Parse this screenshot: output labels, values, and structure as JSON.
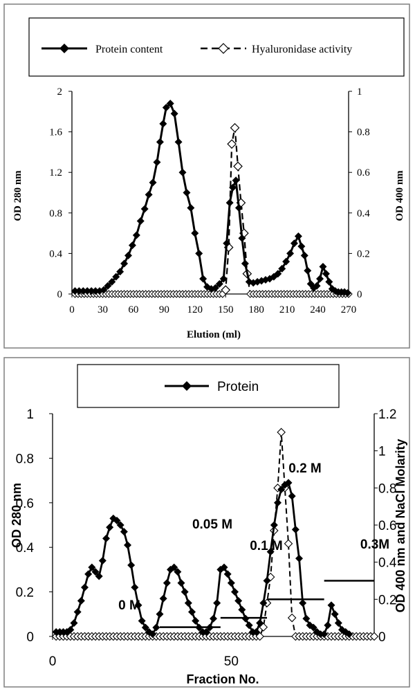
{
  "chart_data": [
    {
      "type": "line",
      "title": "",
      "legend": {
        "position": "top",
        "entries": [
          "Protein content",
          "Hyaluronidase activity"
        ]
      },
      "xlabel": "Elution (ml)",
      "ylabel": "OD 280 nm",
      "y2label": "OD 400 nm",
      "xlim": [
        0,
        270
      ],
      "ylim": [
        0,
        2
      ],
      "y2lim": [
        0,
        1
      ],
      "xticks": [
        "0",
        "30",
        "60",
        "90",
        "120",
        "150",
        "180",
        "210",
        "240",
        "270"
      ],
      "yticks": [
        "0",
        "0.4",
        "0.8",
        "1.2",
        "1.6",
        "2"
      ],
      "y2ticks": [
        "0",
        "0.2",
        "0.4",
        "0.6",
        "0.8",
        "1"
      ],
      "grid": false,
      "series": [
        {
          "name": "Protein content",
          "axis": "left",
          "marker": "filled-diamond",
          "line": "solid",
          "x": [
            3,
            7,
            11,
            15,
            19,
            23,
            27,
            31,
            35,
            39,
            43,
            47,
            51,
            55,
            59,
            63,
            67,
            71,
            75,
            79,
            83,
            86,
            89,
            92,
            96,
            100,
            104,
            108,
            112,
            116,
            120,
            124,
            128,
            132,
            136,
            140,
            144,
            148,
            151,
            154,
            157,
            160,
            163,
            166,
            169,
            173,
            177,
            181,
            185,
            189,
            193,
            197,
            201,
            205,
            209,
            213,
            217,
            221,
            224,
            227,
            230,
            233,
            236,
            239,
            242,
            245,
            248,
            251,
            254,
            257,
            260,
            263,
            266,
            269
          ],
          "y": [
            0.03,
            0.03,
            0.03,
            0.03,
            0.03,
            0.03,
            0.03,
            0.04,
            0.08,
            0.12,
            0.17,
            0.22,
            0.3,
            0.38,
            0.48,
            0.58,
            0.72,
            0.84,
            0.98,
            1.1,
            1.3,
            1.5,
            1.68,
            1.84,
            1.88,
            1.78,
            1.5,
            1.2,
            1.0,
            0.85,
            0.6,
            0.4,
            0.15,
            0.07,
            0.05,
            0.06,
            0.1,
            0.15,
            0.5,
            0.9,
            1.05,
            1.12,
            0.85,
            0.55,
            0.3,
            0.12,
            0.11,
            0.12,
            0.13,
            0.14,
            0.15,
            0.17,
            0.2,
            0.25,
            0.32,
            0.4,
            0.5,
            0.57,
            0.47,
            0.38,
            0.23,
            0.1,
            0.06,
            0.08,
            0.15,
            0.27,
            0.2,
            0.12,
            0.05,
            0.03,
            0.02,
            0.02,
            0.02,
            0.01
          ]
        },
        {
          "name": "Hyaluronidase activity",
          "axis": "right",
          "marker": "open-diamond",
          "line": "dashed",
          "x": [
            6,
            12,
            18,
            24,
            30,
            36,
            42,
            48,
            54,
            60,
            66,
            72,
            78,
            84,
            90,
            96,
            102,
            108,
            114,
            120,
            126,
            132,
            138,
            144,
            150,
            153,
            156,
            159,
            162,
            165,
            168,
            171,
            174,
            180,
            186,
            192,
            198,
            204,
            210,
            216,
            222,
            228,
            234,
            240,
            246,
            252,
            258,
            264,
            270
          ],
          "y": [
            0,
            0,
            0,
            0,
            0,
            0,
            0,
            0,
            0,
            0,
            0,
            0,
            0,
            0,
            0,
            0,
            0,
            0,
            0,
            0,
            0,
            0,
            0,
            0,
            0.02,
            0.23,
            0.74,
            0.82,
            0.63,
            0.45,
            0.3,
            0.1,
            0,
            0,
            0,
            0,
            0,
            0,
            0,
            0,
            0,
            0,
            0,
            0,
            0,
            0,
            0,
            0,
            0
          ]
        }
      ]
    },
    {
      "type": "line",
      "title": "",
      "legend": {
        "position": "top",
        "entries": [
          "Protein"
        ]
      },
      "xlabel": "Fraction No.",
      "ylabel": "OD 280 nm",
      "y2label": "OD 400 nm and NaCl Molarity",
      "xlim": [
        0,
        90
      ],
      "ylim": [
        0,
        1
      ],
      "y2lim": [
        0,
        1.2
      ],
      "xticks": [
        "0",
        "50"
      ],
      "yticks": [
        "0",
        "0.2",
        "0.4",
        "0.6",
        "0.8",
        "1"
      ],
      "y2ticks": [
        "0",
        "0.2",
        "0.4",
        "0.6",
        "0.8",
        "1",
        "1.2"
      ],
      "grid": false,
      "annotations": [
        "0 M",
        "0.05 M",
        "0.1 M",
        "0.2 M",
        "0.3M"
      ],
      "series": [
        {
          "name": "Protein",
          "axis": "left",
          "marker": "filled-diamond",
          "line": "solid",
          "x": [
            1,
            2,
            3,
            4,
            5,
            6,
            7,
            8,
            9,
            10,
            11,
            12,
            13,
            14,
            15,
            16,
            17,
            18,
            19,
            20,
            21,
            22,
            23,
            24,
            25,
            26,
            27,
            28,
            29,
            30,
            31,
            32,
            33,
            34,
            35,
            36,
            37,
            38,
            39,
            40,
            41,
            42,
            43,
            44,
            45,
            46,
            47,
            48,
            49,
            50,
            51,
            52,
            53,
            54,
            55,
            56,
            57,
            58,
            59,
            60,
            61,
            62,
            63,
            64,
            65,
            66,
            67,
            68,
            69,
            70,
            71,
            72,
            73,
            74,
            75,
            76,
            77,
            78,
            79,
            80,
            81,
            82,
            83
          ],
          "y": [
            0.02,
            0.02,
            0.02,
            0.02,
            0.03,
            0.06,
            0.11,
            0.16,
            0.22,
            0.28,
            0.31,
            0.29,
            0.27,
            0.34,
            0.44,
            0.49,
            0.53,
            0.52,
            0.5,
            0.47,
            0.41,
            0.32,
            0.22,
            0.14,
            0.07,
            0.04,
            0.02,
            0.01,
            0.04,
            0.1,
            0.17,
            0.24,
            0.3,
            0.31,
            0.29,
            0.24,
            0.2,
            0.15,
            0.11,
            0.07,
            0.04,
            0.02,
            0.02,
            0.04,
            0.08,
            0.15,
            0.3,
            0.31,
            0.28,
            0.24,
            0.2,
            0.16,
            0.12,
            0.08,
            0.05,
            0.02,
            0.02,
            0.06,
            0.15,
            0.25,
            0.38,
            0.5,
            0.6,
            0.66,
            0.68,
            0.69,
            0.63,
            0.48,
            0.35,
            0.15,
            0.08,
            0.05,
            0.04,
            0.02,
            0.01,
            0.01,
            0.05,
            0.14,
            0.1,
            0.06,
            0.03,
            0.02,
            0.01
          ]
        },
        {
          "name": "",
          "axis": "right",
          "marker": "open-diamond",
          "line": "dashed",
          "x": [
            1,
            2,
            3,
            4,
            5,
            6,
            7,
            8,
            9,
            10,
            11,
            12,
            13,
            14,
            15,
            16,
            17,
            18,
            19,
            20,
            21,
            22,
            23,
            24,
            25,
            26,
            27,
            28,
            29,
            30,
            31,
            32,
            33,
            34,
            35,
            36,
            37,
            38,
            39,
            40,
            41,
            42,
            43,
            44,
            45,
            46,
            47,
            48,
            49,
            50,
            51,
            52,
            53,
            54,
            55,
            56,
            57,
            58,
            59,
            60,
            61,
            62,
            63,
            64,
            65,
            66,
            67,
            68,
            69,
            70,
            71,
            72,
            73,
            74,
            75,
            76,
            77,
            78,
            79,
            80,
            81,
            82,
            83,
            84,
            85,
            86,
            87,
            88,
            89,
            90
          ],
          "y": [
            0,
            0,
            0,
            0,
            0,
            0,
            0,
            0,
            0,
            0,
            0,
            0,
            0,
            0,
            0,
            0,
            0,
            0,
            0,
            0,
            0,
            0,
            0,
            0,
            0,
            0,
            0,
            0,
            0,
            0,
            0,
            0,
            0,
            0,
            0,
            0,
            0,
            0,
            0,
            0,
            0,
            0,
            0,
            0,
            0,
            0,
            0,
            0,
            0,
            0,
            0,
            0,
            0,
            0,
            0,
            0,
            0,
            0,
            0.05,
            0.18,
            0.32,
            0.57,
            0.8,
            1.1,
            0.8,
            0.5,
            0.1,
            0,
            0,
            0,
            0,
            0,
            0,
            0,
            0,
            0,
            0,
            0,
            0,
            0,
            0,
            0,
            0,
            0,
            0,
            0,
            0,
            0,
            0,
            0
          ]
        },
        {
          "name": "",
          "axis": "right",
          "type": "step",
          "line": "solid",
          "segments": [
            {
              "x": [
                0,
                30
              ],
              "y": 0
            },
            {
              "x": [
                30,
                47
              ],
              "y": 0.05
            },
            {
              "x": [
                47,
                60
              ],
              "y": 0.1
            },
            {
              "x": [
                60,
                76
              ],
              "y": 0.2
            },
            {
              "x": [
                76,
                90
              ],
              "y": 0.3
            }
          ]
        }
      ]
    }
  ]
}
